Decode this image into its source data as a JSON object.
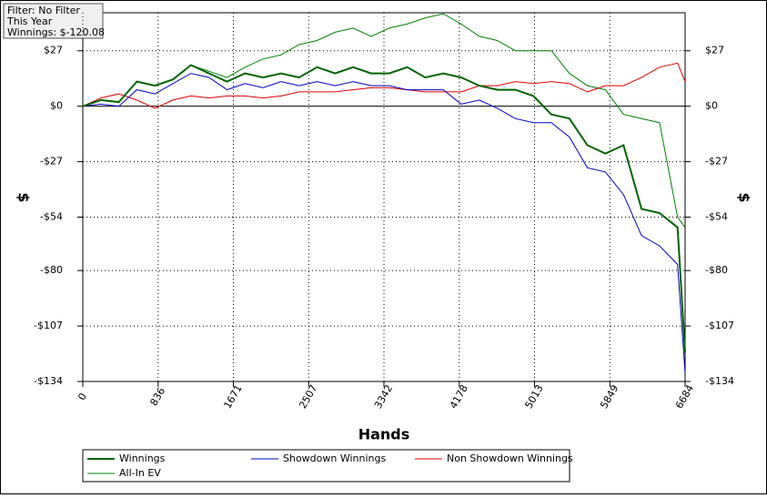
{
  "filter_box": {
    "lines": [
      "Filter: No Filter",
      "This Year",
      "Winnings: $-120.08"
    ]
  },
  "chart_data": {
    "type": "line",
    "xlabel": "Hands",
    "ylabel": "$",
    "y2label": "$",
    "x": [
      0,
      200,
      400,
      600,
      800,
      1000,
      1200,
      1400,
      1600,
      1800,
      2000,
      2200,
      2400,
      2600,
      2800,
      3000,
      3200,
      3400,
      3600,
      3800,
      4000,
      4200,
      4400,
      4600,
      4800,
      5000,
      5200,
      5400,
      5600,
      5800,
      6000,
      6200,
      6400,
      6600,
      6684
    ],
    "series": [
      {
        "name": "Winnings",
        "color": "#006400",
        "values": [
          0,
          3,
          2,
          12,
          10,
          13,
          20,
          16,
          12,
          16,
          14,
          16,
          14,
          19,
          16,
          19,
          16,
          16,
          19,
          14,
          16,
          14,
          10,
          8,
          8,
          5,
          -4,
          -6,
          -19,
          -23,
          -19,
          -50,
          -52,
          -59,
          -120
        ]
      },
      {
        "name": "Showdown Winnings",
        "color": "#0000c0",
        "values": [
          0,
          1,
          0,
          8,
          6,
          11,
          16,
          14,
          8,
          11,
          9,
          12,
          10,
          12,
          10,
          12,
          10,
          10,
          8,
          8,
          8,
          1,
          3,
          -1,
          -6,
          -8,
          -8,
          -15,
          -30,
          -32,
          -43,
          -63,
          -68,
          -77,
          -130
        ]
      },
      {
        "name": "Non Showdown Winnings",
        "color": "#e00000",
        "values": [
          0,
          4,
          6,
          3,
          -1,
          3,
          5,
          4,
          5,
          5,
          4,
          5,
          7,
          7,
          7,
          8,
          9,
          9,
          8,
          7,
          7,
          7,
          10,
          10,
          12,
          11,
          12,
          11,
          7,
          10,
          10,
          14,
          19,
          21,
          12
        ]
      },
      {
        "name": "All-In EV",
        "color": "#008000",
        "values": [
          0,
          3,
          2,
          12,
          10,
          13,
          20,
          17,
          14,
          19,
          23,
          25,
          30,
          32,
          36,
          38,
          34,
          38,
          40,
          43,
          45,
          40,
          34,
          32,
          27,
          27,
          27,
          16,
          10,
          8,
          -4,
          -6,
          -8,
          -54,
          -59
        ]
      }
    ],
    "xlim": [
      0,
      6684
    ],
    "ylim": [
      -134,
      45.5
    ],
    "xticks": [
      0,
      836,
      1671,
      2507,
      3342,
      4178,
      5013,
      5849,
      6684
    ],
    "yticks": [
      {
        "value": 27,
        "label": "$27"
      },
      {
        "value": 0,
        "label": "$0"
      },
      {
        "value": -27,
        "label": "-$27"
      },
      {
        "value": -54,
        "label": "-$54"
      },
      {
        "value": -80,
        "label": "-$80"
      },
      {
        "value": -107,
        "label": "-$107"
      },
      {
        "value": -134,
        "label": "-$134"
      }
    ],
    "grid": true
  }
}
